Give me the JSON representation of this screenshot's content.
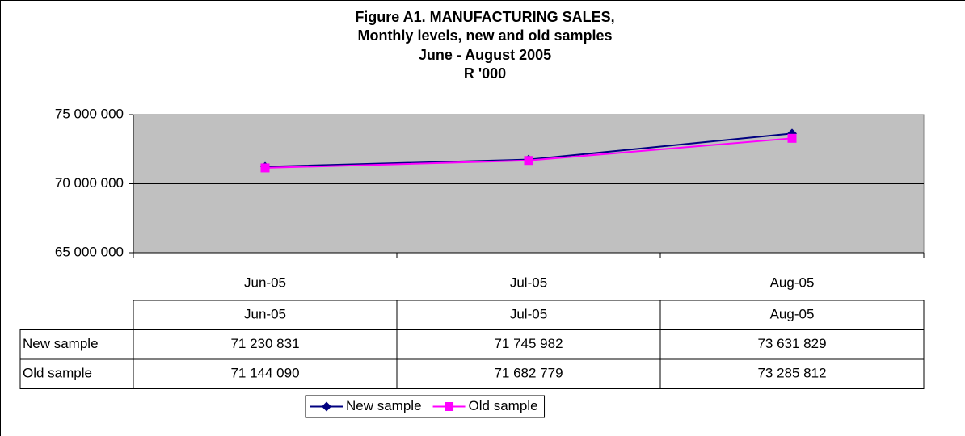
{
  "chart_data": {
    "type": "line",
    "title": "Figure A1. MANUFACTURING SALES,",
    "subtitle": [
      "Monthly levels, new and old samples",
      "June - August 2005",
      "R '000"
    ],
    "categories": [
      "Jun-05",
      "Jul-05",
      "Aug-05"
    ],
    "series": [
      {
        "name": "New sample",
        "color": "#000080",
        "values": [
          71230831,
          71745982,
          73631829
        ],
        "value_labels": [
          "71 230 831",
          "71 745 982",
          "73 631 829"
        ]
      },
      {
        "name": "Old sample",
        "color": "#ff00ff",
        "values": [
          71144090,
          71682779,
          73285812
        ],
        "value_labels": [
          "71 144 090",
          "71 682 779",
          "73 285 812"
        ]
      }
    ],
    "ylim": [
      65000000,
      75000000
    ],
    "yticks": [
      {
        "value": 65000000,
        "label": "65 000 000"
      },
      {
        "value": 70000000,
        "label": "70 000 000"
      },
      {
        "value": 75000000,
        "label": "75 000 000"
      }
    ],
    "grid": true,
    "legend": "bottom"
  }
}
